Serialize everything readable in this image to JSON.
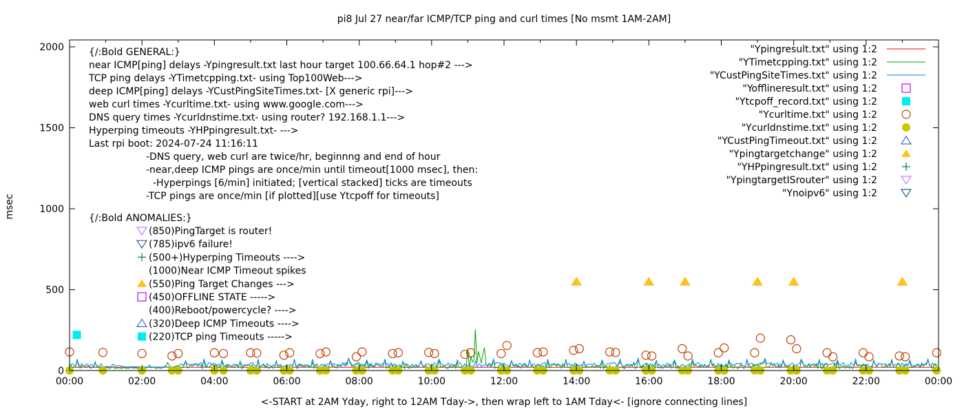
{
  "chart_data": {
    "type": "line",
    "title": "pi8 Jul 27  near/far ICMP/TCP ping and curl times [No msmt 1AM-2AM]",
    "xlabel": "<-START at 2AM Yday, right to 12AM Tday->, then wrap left to 1AM Tday<- [ignore connecting lines]",
    "ylabel": "msec",
    "xlim": [
      0,
      24
    ],
    "ylim": [
      0,
      2050
    ],
    "x_ticks": [
      "00:00",
      "02:00",
      "04:00",
      "06:00",
      "08:00",
      "10:00",
      "12:00",
      "14:00",
      "16:00",
      "18:00",
      "20:00",
      "22:00",
      "00:00"
    ],
    "y_ticks": [
      0,
      500,
      1000,
      1500,
      2000
    ],
    "legend_placement": "top-right",
    "legend": [
      {
        "label": "\"Ypingresult.txt\" using 1:2",
        "style": "line",
        "color": "#ff0000"
      },
      {
        "label": "\"YTimetcpping.txt\" using 1:2",
        "style": "line",
        "color": "#00a000"
      },
      {
        "label": "\"YCustPingSiteTimes.txt\" using 1:2",
        "style": "line",
        "color": "#0080ff"
      },
      {
        "label": "\"Yofflineresult.txt\" using 1:2",
        "style": "open-square",
        "color": "#c000ff"
      },
      {
        "label": "\"Ytcpoff_record.txt\" using 1:2",
        "style": "filled-square",
        "color": "#00eeee"
      },
      {
        "label": "\"Ycurltime.txt\" using 1:2",
        "style": "open-circle",
        "color": "#c04000"
      },
      {
        "label": "\"Ycurldnstime.txt\" using 1:2",
        "style": "filled-circle",
        "color": "#c8c800"
      },
      {
        "label": "\"YCustPingTimeout.txt\" using 1:2",
        "style": "open-triangle",
        "color": "#4169e1"
      },
      {
        "label": "\"Ypingtargetchange\" using 1:2",
        "style": "filled-triangle",
        "color": "#ffc020"
      },
      {
        "label": "\"YHPpingresult.txt\" using 1:2",
        "style": "plus",
        "color": "#008040"
      },
      {
        "label": "\"YpingtargetISrouter\" using 1:2",
        "style": "open-inv-triangle",
        "color": "#c080ff"
      },
      {
        "label": "\"Ynoipv6\" using 1:2",
        "style": "open-inv-triangle",
        "color": "#306080"
      }
    ],
    "annotations_general": [
      "{/:Bold GENERAL:}",
      "near ICMP[ping] delays -Ypingresult.txt last hour target 100.66.64.1 hop#2 --->",
      "TCP ping delays -YTimetcpping.txt- using Top100Web--->",
      "deep ICMP[ping] delays -YCustPingSiteTimes.txt- [X generic rpi]--->",
      "web curl times -Ycurltime.txt- using www.google.com--->",
      "DNS query times -Ycurldnstime.txt- using router? 192.168.1.1--->",
      "Hyperping timeouts -YHPpingresult.txt- --->",
      "Last rpi boot: 2024-07-24 11:16:11",
      "-DNS query, web curl are twice/hr, beginnng and end of hour",
      "-near,deep ICMP pings are once/min until timeout[1000 msec], then:",
      " -Hyperpings [6/min] initiated; [vertical stacked] ticks are timeouts",
      "-TCP pings are once/min [if plotted][use Ytcpoff for timeouts]"
    ],
    "annotations_anomalies_title": "{/:Bold ANOMALIES:}",
    "annotations_anomalies": [
      {
        "text": "(850)PingTarget is router!",
        "marker": "open-inv-triangle",
        "color": "#c080ff"
      },
      {
        "text": "(785)ipv6 failure!",
        "marker": "open-inv-triangle",
        "color": "#306080"
      },
      {
        "text": "(500+)Hyperping Timeouts ---->",
        "marker": "plus",
        "color": "#008040"
      },
      {
        "text": "(1000)Near ICMP Timeout spikes",
        "marker": "",
        "color": ""
      },
      {
        "text": "(550)Ping Target Changes --->",
        "marker": "filled-triangle",
        "color": "#ffc020"
      },
      {
        "text": "(450)OFFLINE STATE ----->",
        "marker": "open-square",
        "color": "#c000ff"
      },
      {
        "text": "(400)Reboot/powercycle? ---->",
        "marker": "",
        "color": ""
      },
      {
        "text": "(320)Deep ICMP Timeouts ---->",
        "marker": "open-triangle",
        "color": "#4169e1"
      },
      {
        "text": "(220)TCP ping Timeouts ----->",
        "marker": "filled-square",
        "color": "#00eeee"
      }
    ],
    "series": {
      "pingtargetchange": {
        "x": [
          14,
          16,
          17,
          19,
          20,
          23
        ],
        "y": [
          550,
          550,
          550,
          550,
          550,
          550
        ]
      },
      "tcpoff_record": {
        "x": [
          0.2
        ],
        "y": [
          220
        ]
      },
      "curltime": {
        "x": [
          0.0,
          0.92,
          2.0,
          2.83,
          3.0,
          4.0,
          4.25,
          5.0,
          5.17,
          5.92,
          6.08,
          6.92,
          7.08,
          7.92,
          8.08,
          8.92,
          9.08,
          9.92,
          10.08,
          10.92,
          11.08,
          11.92,
          12.08,
          12.92,
          13.08,
          13.92,
          14.08,
          14.92,
          15.08,
          15.92,
          16.08,
          16.92,
          17.08,
          17.92,
          18.08,
          18.92,
          19.08,
          19.92,
          20.08,
          20.92,
          21.08,
          21.92,
          22.08,
          22.92,
          23.08,
          23.95
        ],
        "y": [
          115,
          112,
          105,
          90,
          105,
          110,
          105,
          110,
          108,
          95,
          110,
          105,
          115,
          85,
          115,
          105,
          110,
          112,
          105,
          100,
          110,
          105,
          155,
          110,
          115,
          125,
          135,
          115,
          112,
          95,
          90,
          135,
          90,
          110,
          140,
          110,
          200,
          190,
          135,
          110,
          85,
          110,
          85,
          90,
          85,
          110
        ]
      },
      "curldnstime": {
        "x": [
          0.0,
          0.92,
          2.0,
          2.83,
          3.0,
          4.0,
          4.25,
          5.0,
          5.17,
          5.92,
          6.08,
          6.92,
          7.08,
          7.92,
          8.08,
          8.92,
          9.08,
          9.92,
          10.08,
          10.92,
          11.08,
          11.92,
          12.08,
          12.92,
          13.08,
          13.92,
          14.08,
          14.92,
          15.08,
          15.92,
          16.08,
          16.92,
          17.08,
          17.92,
          18.08,
          18.92,
          19.08,
          19.92,
          20.08,
          20.92,
          21.08,
          21.92,
          22.08,
          22.92,
          23.08,
          23.95
        ],
        "y": [
          0,
          0,
          0,
          0,
          0,
          0,
          0,
          0,
          0,
          0,
          0,
          0,
          0,
          0,
          0,
          0,
          0,
          0,
          0,
          0,
          0,
          0,
          0,
          0,
          0,
          0,
          0,
          0,
          0,
          0,
          0,
          0,
          0,
          0,
          0,
          0,
          0,
          0,
          0,
          0,
          0,
          0,
          0,
          0,
          0,
          0
        ]
      },
      "custpingsitetimes_peaks": [
        60,
        55,
        40,
        25,
        20,
        20,
        60,
        70,
        65,
        55,
        70,
        60,
        65,
        70,
        60,
        75,
        65,
        70,
        55,
        60,
        70,
        65,
        60,
        70,
        60,
        65,
        70,
        60,
        55,
        65,
        70,
        75,
        60,
        65,
        70,
        60,
        65,
        70,
        75,
        65,
        70,
        60,
        65,
        70,
        60,
        55,
        65,
        70
      ],
      "timetcpping_peaks": [
        70,
        50,
        25,
        25,
        35,
        50,
        60,
        70,
        55,
        60,
        65,
        60,
        70,
        55,
        60,
        75,
        60,
        70,
        60,
        55,
        65,
        50,
        255,
        70,
        60,
        65,
        60,
        70,
        60,
        65,
        55,
        70,
        65,
        60,
        55,
        70,
        60,
        65,
        70,
        60,
        65,
        70,
        60,
        55,
        65,
        70,
        60,
        65
      ],
      "pingresult_baseline": 20
    }
  }
}
